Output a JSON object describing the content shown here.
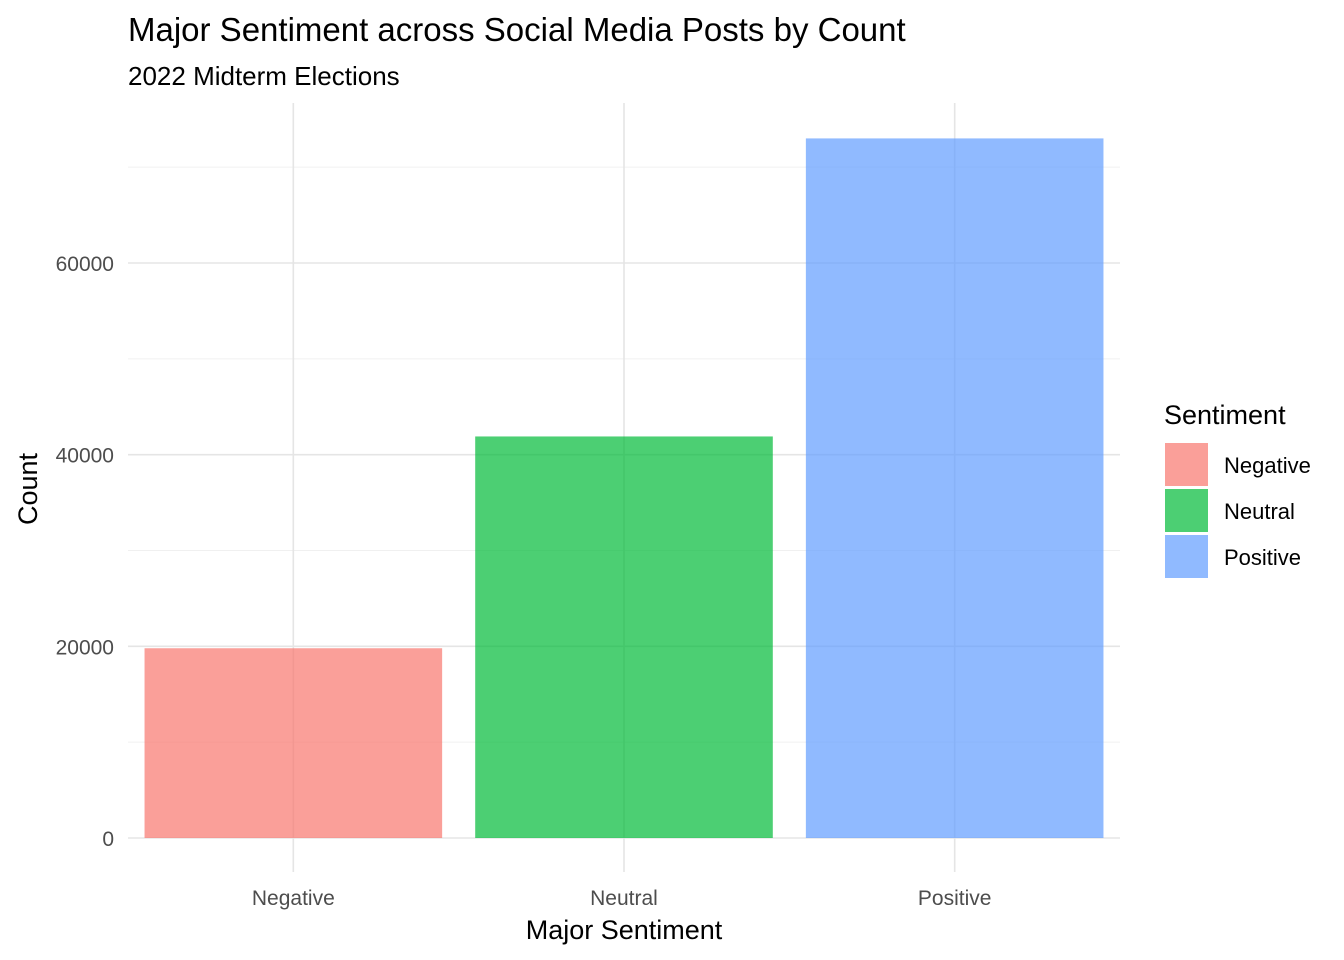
{
  "chart_data": {
    "type": "bar",
    "title": "Major Sentiment across Social Media Posts by Count",
    "subtitle": "2022 Midterm Elections",
    "xlabel": "Major Sentiment",
    "ylabel": "Count",
    "categories": [
      "Negative",
      "Neutral",
      "Positive"
    ],
    "values": [
      19800,
      41900,
      73000
    ],
    "colors": [
      "#F8766D",
      "#00BA38",
      "#619CFF"
    ],
    "bar_opacity": 0.7,
    "ylim": [
      0,
      76700
    ],
    "yticks": [
      0,
      20000,
      40000,
      60000
    ],
    "ytick_labels": [
      "0",
      "20000",
      "40000",
      "60000"
    ],
    "grid": true,
    "legend": {
      "title": "Sentiment",
      "position": "right",
      "entries": [
        "Negative",
        "Neutral",
        "Positive"
      ]
    }
  }
}
